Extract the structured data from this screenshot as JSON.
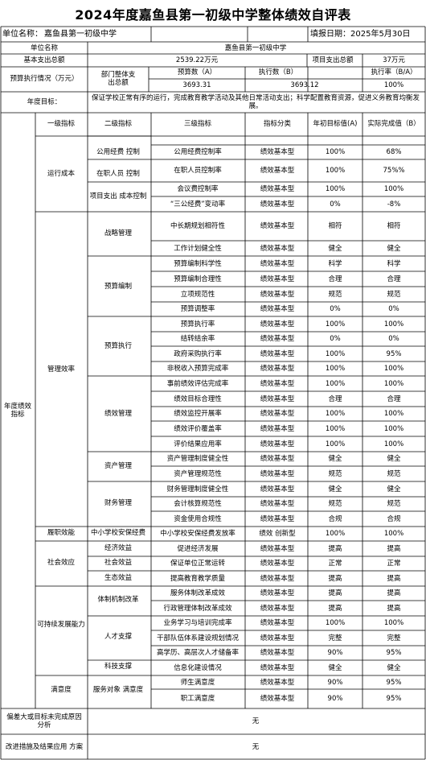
{
  "title": "2024年度嘉鱼县第一初级中学整体绩效自评表",
  "header": {
    "unit_label": "单位名称：",
    "unit_value": "嘉鱼县第一初级中学",
    "fill_date": "填报日期：2025年5月30日"
  },
  "info": {
    "unit_name_label": "单位名称",
    "unit_name_value": "嘉鱼县第一初级中学",
    "basic_label": "基本支出总额",
    "basic_value": "2539.22万元",
    "project_label": "项目支出总额",
    "project_value": "37万元",
    "budget_label": "预算执行情况（万元）",
    "dept_label": "部门整体支出总额",
    "col_a": "预算数（A）",
    "col_b": "执行数（B）",
    "col_rate": "执行率（B/A）",
    "val_a": "3693.31",
    "val_b": "3693.12",
    "val_rate": "100%",
    "goal_label": "年度目标：",
    "goal_text": "保证学校正常有序的运行，完成教育教学活动及其他日常活动支出；科学配置教育资源，促进义务教育均衡发展。"
  },
  "indicators": {
    "section_label": "年度绩效指标",
    "headers": {
      "l1": "一级指标",
      "l2": "二级指标",
      "l3": "三级指标",
      "type": "指标分类",
      "target": "年初目标值(A)",
      "actual": "实际完成值（B）"
    },
    "level1": [
      "运行成本",
      "管理效率",
      "履职效能",
      "社会效应",
      "可持续发展能力",
      "满意度"
    ],
    "level2": [
      "公用经费 控制",
      "在职人员 控制",
      "项目支出 成本控制",
      "战略管理",
      "预算编制",
      "预算执行",
      "绩效管理",
      "资产管理",
      "财务管理",
      "中小学校安保经费",
      "经济效益",
      "社会效益",
      "生态效益",
      "体制机制改革",
      "人才支撑",
      "科技支撑",
      "服务对象 满意度"
    ],
    "rows": [
      {
        "l3": "公用经费控制率",
        "type": "绩效基本型",
        "target": "100%",
        "actual": "68%"
      },
      {
        "l3": "在职人员控制率",
        "type": "绩效基本型",
        "target": "100%",
        "actual": "75%%"
      },
      {
        "l3": "会议费控制率",
        "type": "绩效基本型",
        "target": "100%",
        "actual": "100%"
      },
      {
        "l3": "“三公经费”变动率",
        "type": "绩效基本型",
        "target": "0%",
        "actual": "-8%"
      },
      {
        "l3": "中长期规划相符性",
        "type": "绩效基本型",
        "target": "相符",
        "actual": "相符"
      },
      {
        "l3": "工作计划健全性",
        "type": "绩效基本型",
        "target": "健全",
        "actual": "健全"
      },
      {
        "l3": "预算编制科学性",
        "type": "绩效基本型",
        "target": "科学",
        "actual": "科学"
      },
      {
        "l3": "预算编制合理性",
        "type": "绩效基本型",
        "target": "合理",
        "actual": "合理"
      },
      {
        "l3": "立项规范性",
        "type": "绩效基本型",
        "target": "规范",
        "actual": "规范"
      },
      {
        "l3": "预算调整率",
        "type": "绩效基本型",
        "target": "0%",
        "actual": "0%"
      },
      {
        "l3": "预算执行率",
        "type": "绩效基本型",
        "target": "100%",
        "actual": "100%"
      },
      {
        "l3": "结转结余率",
        "type": "绩效基本型",
        "target": "0%",
        "actual": "0%"
      },
      {
        "l3": "政府采购执行率",
        "type": "绩效基本型",
        "target": "100%",
        "actual": "95%"
      },
      {
        "l3": "非税收入预算完成率",
        "type": "绩效基本型",
        "target": "100%",
        "actual": "100%"
      },
      {
        "l3": "事前绩效评估完成率",
        "type": "绩效基本型",
        "target": "100%",
        "actual": "100%"
      },
      {
        "l3": "绩效目标合理性",
        "type": "绩效基本型",
        "target": "合理",
        "actual": "合理"
      },
      {
        "l3": "绩效监控开展率",
        "type": "绩效基本型",
        "target": "100%",
        "actual": "100%"
      },
      {
        "l3": "绩效评价覆盖率",
        "type": "绩效基本型",
        "target": "100%",
        "actual": "100%"
      },
      {
        "l3": "评价结果应用率",
        "type": "绩效基本型",
        "target": "100%",
        "actual": "100%"
      },
      {
        "l3": "资产管理制度健全性",
        "type": "绩效基本型",
        "target": "健全",
        "actual": "健全"
      },
      {
        "l3": "资产管理规范性",
        "type": "绩效基本型",
        "target": "规范",
        "actual": "规范"
      },
      {
        "l3": "财务管理制度健全性",
        "type": "绩效基本型",
        "target": "健全",
        "actual": "健全"
      },
      {
        "l3": "会计核算规范性",
        "type": "绩效基本型",
        "target": "规范",
        "actual": "规范"
      },
      {
        "l3": "资金使用合规性",
        "type": "绩效基本型",
        "target": "合规",
        "actual": "合规"
      },
      {
        "l3": "中小学校安保经费发放率",
        "type": "绩效 创新型",
        "target": "100%",
        "actual": "100%"
      },
      {
        "l3": "促进经济发展",
        "type": "绩效基本型",
        "target": "提高",
        "actual": "提高"
      },
      {
        "l3": "保证单位正常运转",
        "type": "绩效基本型",
        "target": "正常",
        "actual": "正常"
      },
      {
        "l3": "提高教育教学质量",
        "type": "绩效基本型",
        "target": "提高",
        "actual": "提高"
      },
      {
        "l3": "服务体制改革成效",
        "type": "绩效基本型",
        "target": "提高",
        "actual": "提高"
      },
      {
        "l3": "行政管理体制改革成效",
        "type": "绩效基本型",
        "target": "提高",
        "actual": "提高"
      },
      {
        "l3": "业务学习与培训完成率",
        "type": "绩效基本型",
        "target": "100%",
        "actual": "100%"
      },
      {
        "l3": "干部队伍体系建设规划情况",
        "type": "绩效基本型",
        "target": "完整",
        "actual": "完整"
      },
      {
        "l3": "高学历、高层次人才储备率",
        "type": "绩效基本型",
        "target": "90%",
        "actual": "95%"
      },
      {
        "l3": "信息化建设情况",
        "type": "绩效基本型",
        "target": "健全",
        "actual": "健全"
      },
      {
        "l3": "师生满意度",
        "type": "绩效基本型",
        "target": "90%",
        "actual": "95%"
      },
      {
        "l3": "职工满意度",
        "type": "绩效基本型",
        "target": "90%",
        "actual": "95%"
      }
    ]
  },
  "footer": {
    "deviation_label": "偏差大或目标未完成原因分析",
    "deviation_value": "无",
    "improve_label": "改进措施及结果应用 方案",
    "improve_value": "无"
  }
}
